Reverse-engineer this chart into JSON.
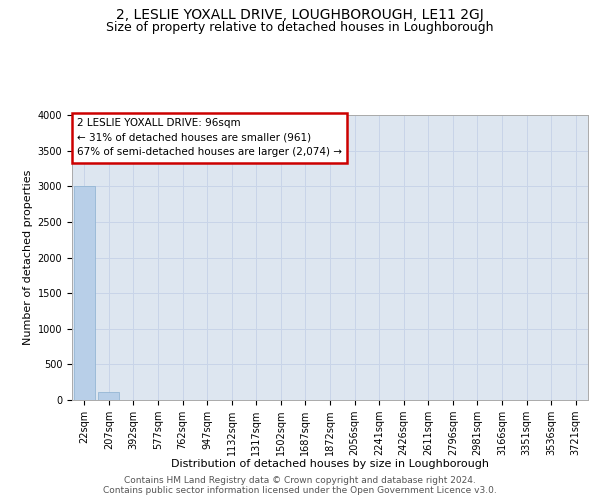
{
  "title": "2, LESLIE YOXALL DRIVE, LOUGHBOROUGH, LE11 2GJ",
  "subtitle": "Size of property relative to detached houses in Loughborough",
  "xlabel": "Distribution of detached houses by size in Loughborough",
  "ylabel": "Number of detached properties",
  "footer_line1": "Contains HM Land Registry data © Crown copyright and database right 2024.",
  "footer_line2": "Contains public sector information licensed under the Open Government Licence v3.0.",
  "bar_labels": [
    "22sqm",
    "207sqm",
    "392sqm",
    "577sqm",
    "762sqm",
    "947sqm",
    "1132sqm",
    "1317sqm",
    "1502sqm",
    "1687sqm",
    "1872sqm",
    "2056sqm",
    "2241sqm",
    "2426sqm",
    "2611sqm",
    "2796sqm",
    "2981sqm",
    "3166sqm",
    "3351sqm",
    "3536sqm",
    "3721sqm"
  ],
  "bar_values": [
    3000,
    110,
    0,
    0,
    0,
    0,
    0,
    0,
    0,
    0,
    0,
    0,
    0,
    0,
    0,
    0,
    0,
    0,
    0,
    0,
    0
  ],
  "bar_color": "#b8cfe8",
  "bar_edge_color": "#8ab0d0",
  "annotation_line1": "2 LESLIE YOXALL DRIVE: 96sqm",
  "annotation_line2": "← 31% of detached houses are smaller (961)",
  "annotation_line3": "67% of semi-detached houses are larger (2,074) →",
  "annotation_box_edgecolor": "#cc0000",
  "annotation_box_facecolor": "#ffffff",
  "ylim": [
    0,
    4000
  ],
  "yticks": [
    0,
    500,
    1000,
    1500,
    2000,
    2500,
    3000,
    3500,
    4000
  ],
  "grid_color": "#c8d4e8",
  "bg_color": "#dde6f0",
  "title_fontsize": 10,
  "subtitle_fontsize": 9,
  "axis_label_fontsize": 8,
  "tick_fontsize": 7,
  "annotation_fontsize": 7.5,
  "footer_fontsize": 6.5
}
